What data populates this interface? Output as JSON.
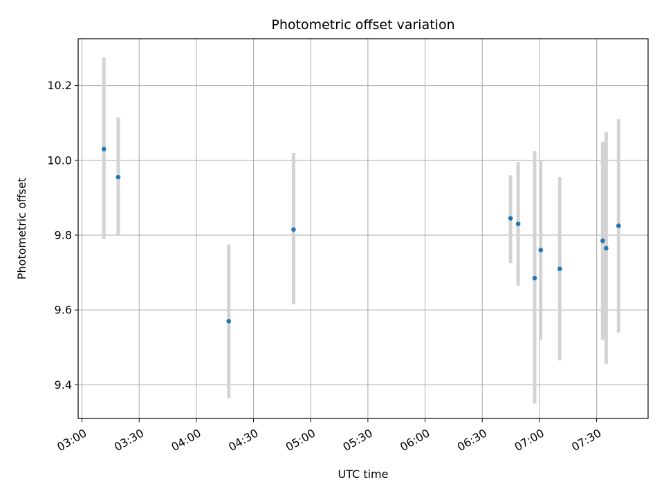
{
  "chart_data": {
    "type": "scatter",
    "title": "Photometric offset variation",
    "xlabel": "UTC time",
    "ylabel": "Photometric offset",
    "x_axis_type": "time",
    "xlim": [
      "02:58",
      "07:57"
    ],
    "ylim": [
      9.31,
      10.325
    ],
    "grid": true,
    "x_ticks": [
      "03:00",
      "03:30",
      "04:00",
      "04:30",
      "05:00",
      "05:30",
      "06:00",
      "06:30",
      "07:00",
      "07:30"
    ],
    "y_ticks": [
      9.4,
      9.6,
      9.8,
      10.0,
      10.2
    ],
    "y_tick_labels": [
      "9.4",
      "9.6",
      "9.8",
      "10.0",
      "10.2"
    ],
    "marker_color": "#1f77b4",
    "errorbar_color": "#d3d3d3",
    "points": [
      {
        "x": "03:11:30",
        "y": 10.03,
        "err_low": 9.79,
        "err_high": 10.275
      },
      {
        "x": "03:19:00",
        "y": 9.955,
        "err_low": 9.8,
        "err_high": 10.115
      },
      {
        "x": "04:17:00",
        "y": 9.57,
        "err_low": 9.365,
        "err_high": 9.775
      },
      {
        "x": "04:51:00",
        "y": 9.815,
        "err_low": 9.615,
        "err_high": 10.02
      },
      {
        "x": "06:44:50",
        "y": 9.845,
        "err_low": 9.725,
        "err_high": 9.96
      },
      {
        "x": "06:48:50",
        "y": 9.83,
        "err_low": 9.665,
        "err_high": 9.995
      },
      {
        "x": "06:57:30",
        "y": 9.685,
        "err_low": 9.35,
        "err_high": 10.025
      },
      {
        "x": "07:00:40",
        "y": 9.76,
        "err_low": 9.52,
        "err_high": 10.0
      },
      {
        "x": "07:10:40",
        "y": 9.71,
        "err_low": 9.465,
        "err_high": 9.955
      },
      {
        "x": "07:33:10",
        "y": 9.785,
        "err_low": 9.52,
        "err_high": 10.05
      },
      {
        "x": "07:35:00",
        "y": 9.765,
        "err_low": 9.455,
        "err_high": 10.075
      },
      {
        "x": "07:41:30",
        "y": 9.825,
        "err_low": 9.54,
        "err_high": 10.11
      }
    ]
  }
}
